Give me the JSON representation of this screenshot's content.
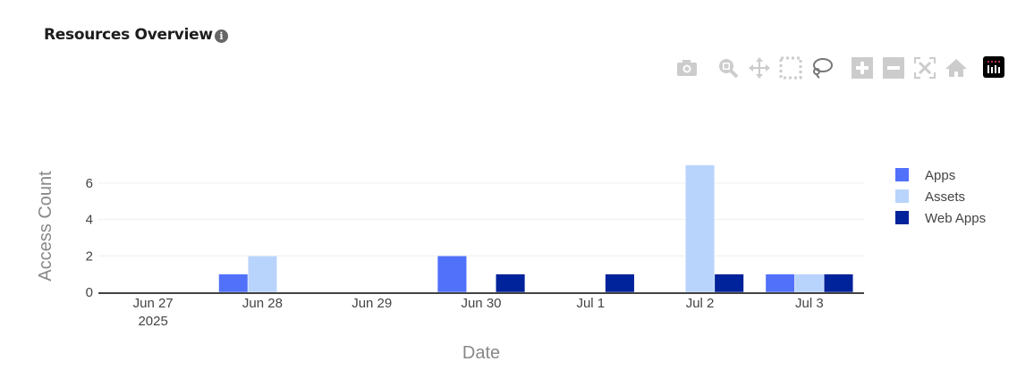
{
  "header": {
    "title": "Resources Overview",
    "info_icon": "info-icon"
  },
  "modebar": {
    "buttons": [
      "camera-icon",
      "zoom-icon",
      "pan-icon",
      "box-select-icon",
      "lasso-select-icon",
      "zoom-in-icon",
      "zoom-out-icon",
      "autoscale-icon",
      "reset-axes-icon",
      "plotly-logo-icon"
    ]
  },
  "chart_data": {
    "type": "bar",
    "title": "",
    "xlabel": "Date",
    "ylabel": "Access Count",
    "categories": [
      "2025-06-27",
      "2025-06-28",
      "2025-06-29",
      "2025-06-30",
      "2025-07-01",
      "2025-07-02",
      "2025-07-03"
    ],
    "x_tick_labels": [
      "Jun 27",
      "Jun 28",
      "Jun 29",
      "Jun 30",
      "Jul 1",
      "Jul 2",
      "Jul 3"
    ],
    "x_tick_year": "2025",
    "y_ticks": [
      0,
      2,
      4,
      6
    ],
    "ylim": [
      0,
      7.37
    ],
    "grid": true,
    "legend_position": "right",
    "series": [
      {
        "name": "Apps",
        "color": "#5171fb",
        "values": [
          0,
          1,
          0,
          2,
          0,
          0,
          1
        ]
      },
      {
        "name": "Assets",
        "color": "#b9d4fc",
        "values": [
          0,
          2,
          0,
          0,
          0,
          7,
          1
        ]
      },
      {
        "name": "Web Apps",
        "color": "#00229a",
        "values": [
          0,
          0,
          0,
          1,
          1,
          1,
          1
        ]
      }
    ]
  }
}
